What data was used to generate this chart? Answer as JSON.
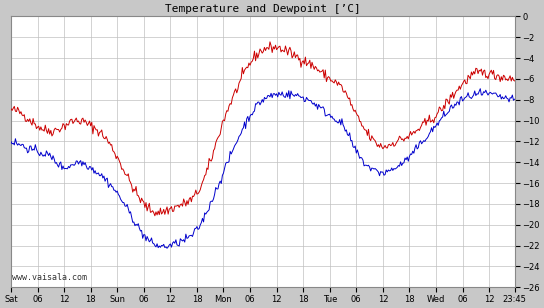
{
  "title": "Temperature and Dewpoint [’C]",
  "ylabel_right_min": -26,
  "ylabel_right_max": 0,
  "ylabel_right_step": 2,
  "background_color": "#c8c8c8",
  "plot_background": "#ffffff",
  "grid_color": "#c0c0c0",
  "temp_color": "#cc0000",
  "dewp_color": "#0000cc",
  "watermark": "www.vaisala.com",
  "xtick_labels": [
    "Sat",
    "06",
    "12",
    "18",
    "Sun",
    "06",
    "12",
    "18",
    "Mon",
    "06",
    "12",
    "18",
    "Tue",
    "06",
    "12",
    "18",
    "Wed",
    "06",
    "12",
    "23:45"
  ],
  "xtick_positions": [
    0,
    6,
    12,
    18,
    24,
    30,
    36,
    42,
    48,
    54,
    60,
    66,
    72,
    78,
    84,
    90,
    96,
    102,
    108,
    113.75
  ],
  "total_hours": 113.75,
  "temp_knots_t": [
    0,
    3,
    6,
    9,
    12,
    15,
    18,
    21,
    24,
    27,
    30,
    33,
    36,
    39,
    42,
    45,
    48,
    51,
    54,
    57,
    60,
    63,
    66,
    69,
    72,
    75,
    78,
    81,
    84,
    87,
    90,
    93,
    96,
    99,
    102,
    105,
    108,
    111,
    113.75
  ],
  "temp_knots_v": [
    -9.0,
    -9.5,
    -10.5,
    -11.0,
    -10.5,
    -10.0,
    -10.5,
    -11.5,
    -13.5,
    -16.0,
    -18.0,
    -18.8,
    -18.5,
    -18.0,
    -17.0,
    -14.0,
    -10.0,
    -7.0,
    -4.5,
    -3.2,
    -3.0,
    -3.5,
    -4.2,
    -5.0,
    -6.0,
    -7.0,
    -9.5,
    -11.5,
    -12.5,
    -12.0,
    -11.5,
    -10.5,
    -9.5,
    -8.0,
    -6.5,
    -5.5,
    -5.5,
    -5.8,
    -6.0
  ],
  "dewp_knots_t": [
    0,
    3,
    6,
    9,
    12,
    15,
    18,
    21,
    24,
    27,
    30,
    33,
    36,
    39,
    42,
    45,
    48,
    51,
    54,
    57,
    60,
    63,
    66,
    69,
    72,
    75,
    78,
    81,
    84,
    87,
    90,
    93,
    96,
    99,
    102,
    105,
    108,
    111,
    113.75
  ],
  "dewp_knots_v": [
    -12.0,
    -12.5,
    -13.0,
    -13.5,
    -14.5,
    -14.0,
    -14.5,
    -15.5,
    -17.0,
    -19.0,
    -21.0,
    -22.0,
    -22.0,
    -21.5,
    -20.5,
    -18.0,
    -15.0,
    -12.0,
    -9.5,
    -8.0,
    -7.5,
    -7.5,
    -7.8,
    -8.5,
    -9.5,
    -10.5,
    -13.0,
    -14.5,
    -15.0,
    -14.5,
    -13.5,
    -12.0,
    -10.5,
    -9.0,
    -8.0,
    -7.5,
    -7.5,
    -7.8,
    -8.0
  ],
  "noise_seed": 42,
  "noise_temp_std": 0.25,
  "noise_dewp_std": 0.2
}
